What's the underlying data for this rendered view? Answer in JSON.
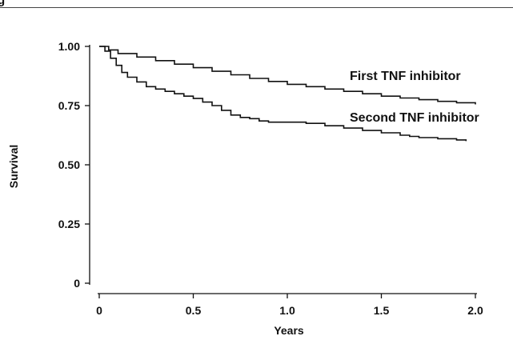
{
  "figure": {
    "label": "g"
  },
  "chart_data": {
    "type": "line",
    "title": "",
    "xlabel": "Years",
    "ylabel": "Survival",
    "xlim": [
      0,
      2.0
    ],
    "ylim": [
      0,
      1.0
    ],
    "grid": false,
    "legend": "direct labels at right",
    "x_ticks": [
      {
        "value": 0,
        "label": "0"
      },
      {
        "value": 0.5,
        "label": "0.5"
      },
      {
        "value": 1.0,
        "label": "1.0"
      },
      {
        "value": 1.5,
        "label": "1.5"
      },
      {
        "value": 2.0,
        "label": "2.0"
      }
    ],
    "y_ticks": [
      {
        "value": 0,
        "label": "0"
      },
      {
        "value": 0.25,
        "label": "0.25"
      },
      {
        "value": 0.5,
        "label": "0.50"
      },
      {
        "value": 0.75,
        "label": "0.75"
      },
      {
        "value": 1.0,
        "label": "1.00"
      }
    ],
    "series": [
      {
        "name": "First TNF inhibitor",
        "color": "#111111",
        "x": [
          0,
          0.05,
          0.1,
          0.2,
          0.3,
          0.4,
          0.5,
          0.6,
          0.7,
          0.8,
          0.9,
          1.0,
          1.1,
          1.2,
          1.3,
          1.4,
          1.5,
          1.6,
          1.7,
          1.8,
          1.9,
          2.0
        ],
        "y": [
          1.0,
          0.985,
          0.97,
          0.955,
          0.94,
          0.925,
          0.91,
          0.895,
          0.88,
          0.865,
          0.852,
          0.84,
          0.83,
          0.82,
          0.81,
          0.8,
          0.79,
          0.782,
          0.775,
          0.768,
          0.762,
          0.755
        ]
      },
      {
        "name": "Second TNF inhibitor",
        "color": "#111111",
        "x": [
          0,
          0.03,
          0.06,
          0.09,
          0.12,
          0.15,
          0.2,
          0.25,
          0.3,
          0.35,
          0.4,
          0.45,
          0.5,
          0.55,
          0.6,
          0.65,
          0.7,
          0.75,
          0.8,
          0.85,
          0.9,
          1.0,
          1.1,
          1.2,
          1.3,
          1.4,
          1.5,
          1.6,
          1.65,
          1.7,
          1.8,
          1.9,
          1.95
        ],
        "y": [
          1.0,
          0.98,
          0.95,
          0.92,
          0.89,
          0.87,
          0.85,
          0.83,
          0.82,
          0.81,
          0.8,
          0.79,
          0.78,
          0.765,
          0.75,
          0.73,
          0.71,
          0.7,
          0.695,
          0.685,
          0.68,
          0.68,
          0.675,
          0.665,
          0.655,
          0.645,
          0.635,
          0.625,
          0.62,
          0.615,
          0.61,
          0.605,
          0.6
        ]
      }
    ]
  }
}
